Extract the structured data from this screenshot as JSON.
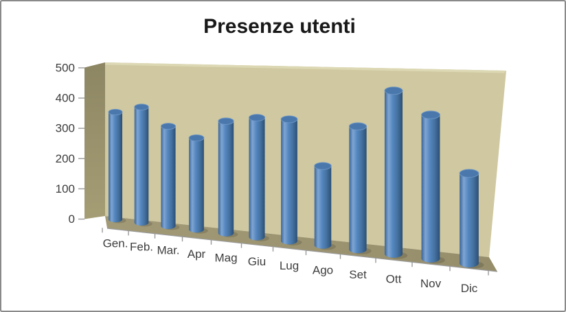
{
  "frame": {
    "background": "#ffffff",
    "border_color": "#898989"
  },
  "chart_data": {
    "type": "bar",
    "subtype": "3d-cylinder",
    "title": "Presenze utenti",
    "categories": [
      "Gen.",
      "Feb.",
      "Mar.",
      "Apr",
      "Mag",
      "Giu",
      "Lug",
      "Ago",
      "Set",
      "Ott",
      "Nov",
      "Dic"
    ],
    "values": [
      340,
      360,
      305,
      275,
      330,
      345,
      345,
      220,
      335,
      435,
      375,
      230
    ],
    "ylim": [
      0,
      500
    ],
    "ytick_step": 100,
    "ytick_labels": [
      "0",
      "100",
      "200",
      "300",
      "400",
      "500"
    ],
    "xlabel": "",
    "ylabel": "",
    "grid": false,
    "legend": "none",
    "view": "3d-perspective",
    "colors": {
      "bar_gradient": [
        "#3a6496",
        "#7fa5d3",
        "#5587c0",
        "#44719f",
        "#2c4f77"
      ],
      "bar_cap": "#4a78ad",
      "cap_rim": "#6e96c4",
      "back_wall": "#cfc8a0",
      "wall_top_bevel": "#ddd8b4",
      "side_wall_dark": "#8d8663",
      "side_wall_light": "#a59d74",
      "floor": "#a29a76",
      "floor_dark": "#968e6b",
      "axis_text": "#3d3d3d",
      "title_text": "#191919",
      "tick": "#999999"
    }
  }
}
